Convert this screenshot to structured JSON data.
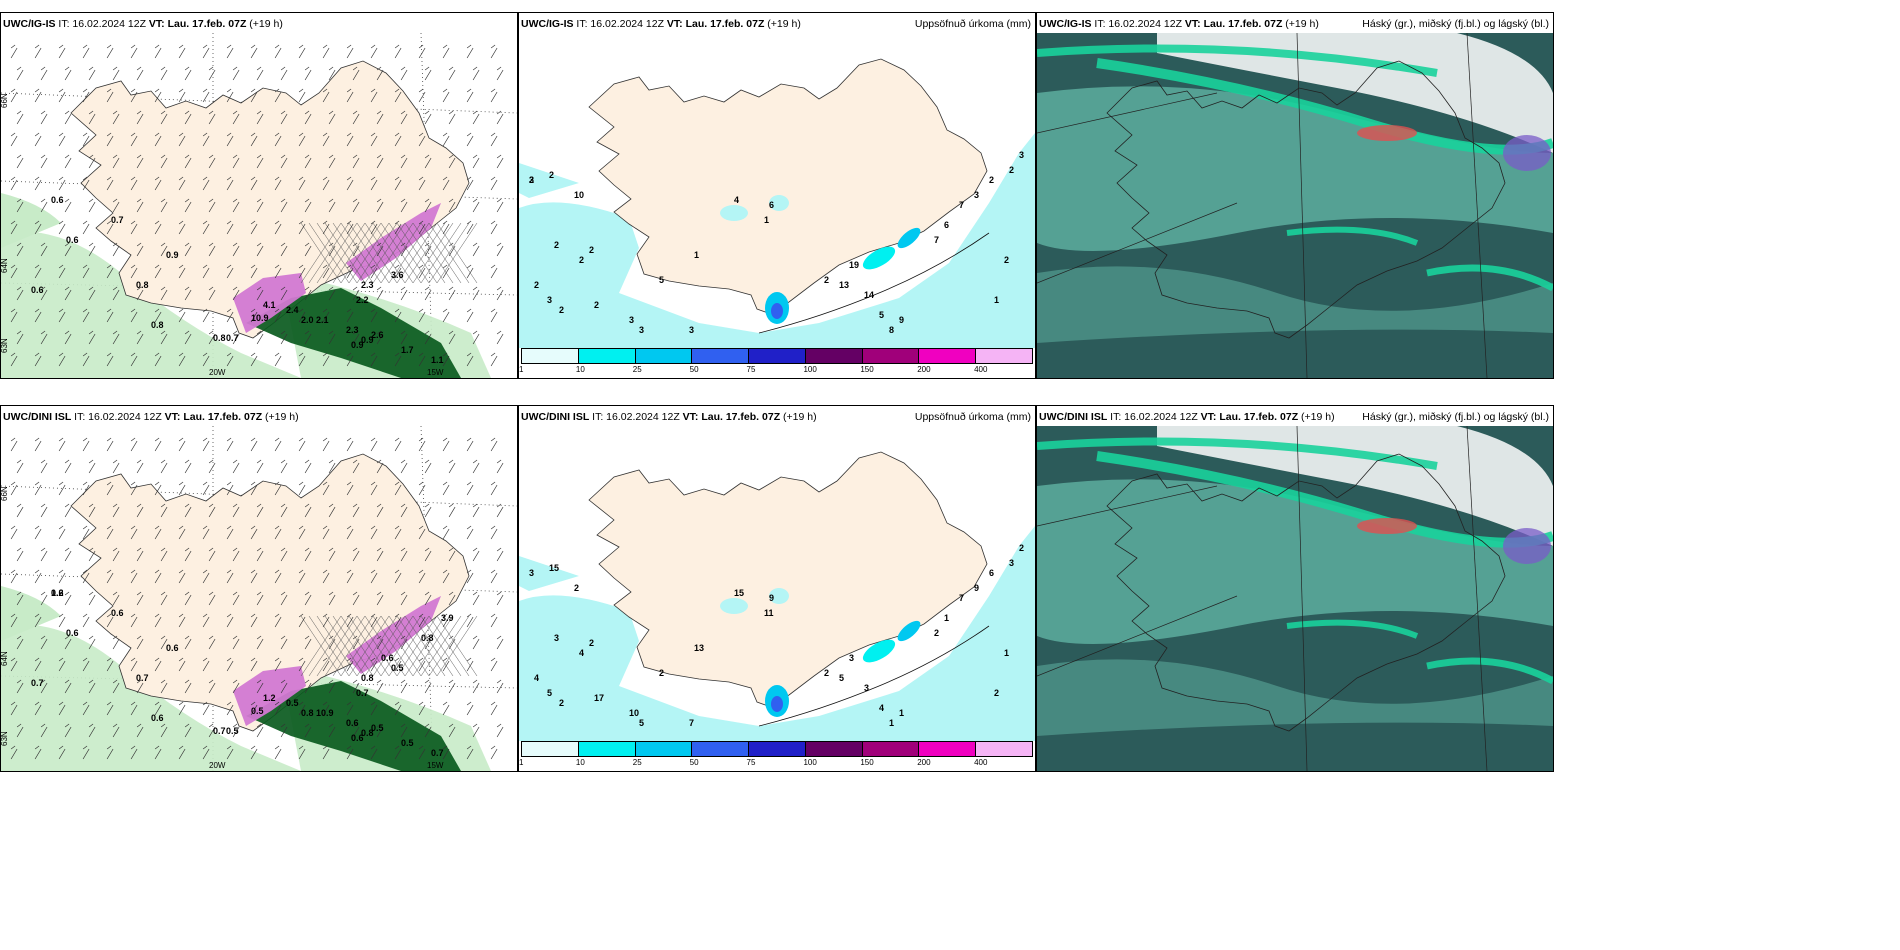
{
  "rows": [
    {
      "model": "UWC/IG-IS",
      "it": "IT: 16.02.2024 12Z",
      "vt": "VT: Lau. 17.feb. 07Z",
      "lead": "(+19 h)",
      "panel2_title": "Uppsöfnuð úrkoma (mm)",
      "panel3_title": "Háský (gr.), miðský (fj.bl.) og lágský (bl.)",
      "lat_labels": [
        "66N",
        "64N",
        "63N"
      ],
      "lon_labels": [
        "20W",
        "15W"
      ],
      "panel1_values": [
        "0.6",
        "0.7",
        "0.6",
        "0.9",
        "0.8",
        "0.6",
        "0.8",
        "0.8",
        "0.7",
        "10.9",
        "4.1",
        "2.4",
        "2.0",
        "2.1",
        "2.3",
        "2.2",
        "0.9",
        "2.6",
        "1.7",
        "2.3",
        "3.6",
        "0.9",
        "1.1"
      ],
      "panel2_values": [
        "3",
        "2",
        "10",
        "2",
        "2",
        "2",
        "2",
        "3",
        "2",
        "2",
        "3",
        "3",
        "3",
        "5",
        "1",
        "4",
        "6",
        "1",
        "2",
        "13",
        "19",
        "14",
        "5",
        "8",
        "9",
        "7",
        "6",
        "7",
        "3",
        "2",
        "2",
        "3",
        "2",
        "1",
        "2"
      ]
    },
    {
      "model": "UWC/DINI ISL",
      "it": "IT: 16.02.2024 12Z",
      "vt": "VT: Lau. 17.feb. 07Z",
      "lead": "(+19 h)",
      "panel2_title": "Uppsöfnuð úrkoma (mm)",
      "panel3_title": "Háský (gr.), miðský (fj.bl.) og lágský (bl.)",
      "lat_labels": [
        "66N",
        "64N",
        "63N"
      ],
      "lon_labels": [
        "20W",
        "15W"
      ],
      "panel1_values": [
        "0.6",
        "0.6",
        "0.6",
        "0.6",
        "0.7",
        "0.7",
        "0.6",
        "0.7",
        "0.5",
        "0.5",
        "1.2",
        "0.5",
        "0.8",
        "10.9",
        "0.6",
        "0.7",
        "0.8",
        "0.5",
        "0.5",
        "0.8",
        "0.5",
        "0.6",
        "0.7",
        "0.6",
        "0.8",
        "3.9",
        "1.2"
      ],
      "panel2_values": [
        "3",
        "15",
        "2",
        "3",
        "2",
        "4",
        "4",
        "5",
        "2",
        "17",
        "10",
        "5",
        "7",
        "2",
        "13",
        "15",
        "9",
        "11",
        "2",
        "5",
        "3",
        "3",
        "4",
        "1",
        "1",
        "2",
        "1",
        "7",
        "9",
        "6",
        "3",
        "2",
        "1",
        "2"
      ]
    }
  ],
  "colorbar": {
    "labels": [
      "1",
      "10",
      "25",
      "50",
      "75",
      "100",
      "150",
      "200",
      "400"
    ],
    "colors": [
      "#e6fcfc",
      "#00f0f0",
      "#00c8f0",
      "#3060f0",
      "#2020c8",
      "#640064",
      "#a0007a",
      "#f000c0",
      "#f5b4f5"
    ]
  },
  "colors": {
    "land": "#fdf0e1",
    "sea_precip_light": "#b4f5f5",
    "green_light": "#c8ebc8",
    "green_dark": "#0a5a1e",
    "purple": "#d278d2",
    "cloud_low": "#2c5b5a",
    "cloud_mid": "#5aa89a",
    "cloud_high": "#ffffff",
    "cloud_band": "#19d29b"
  }
}
